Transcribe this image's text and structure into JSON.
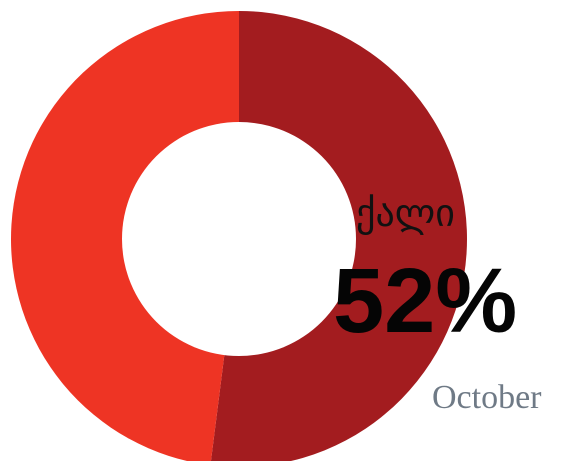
{
  "chart_data": {
    "type": "pie",
    "style": "donut",
    "slices": [
      {
        "value": 52,
        "color": "#a31c1f"
      },
      {
        "value": 48,
        "color": "#ee3424"
      }
    ],
    "annotations": {
      "category": "ქალი",
      "value": "52%",
      "period": "October"
    }
  }
}
